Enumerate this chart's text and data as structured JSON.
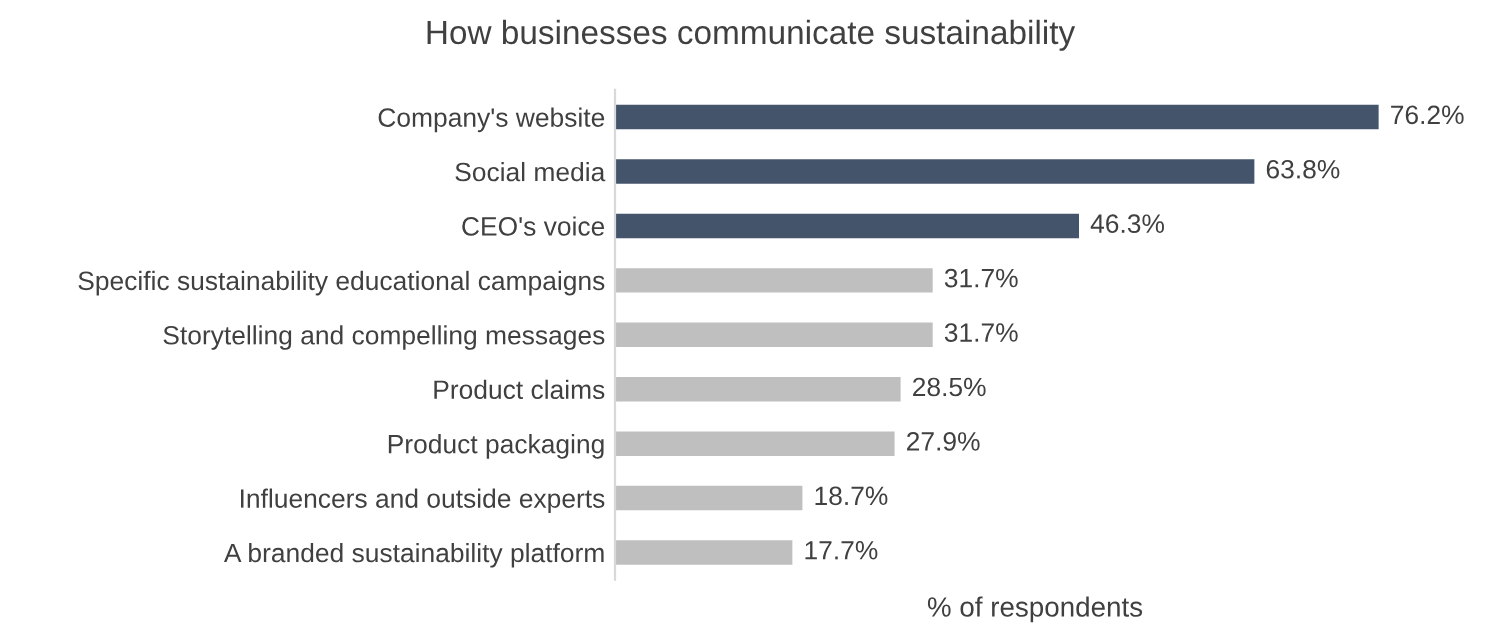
{
  "chart_data": {
    "type": "bar",
    "orientation": "horizontal",
    "title": "How businesses communicate sustainability",
    "xlabel": "% of respondents",
    "categories": [
      "Company's website",
      "Social media",
      "CEO's voice",
      "Specific sustainability educational campaigns",
      "Storytelling and compelling messages",
      "Product claims",
      "Product packaging",
      "Influencers and outside experts",
      "A branded sustainability platform"
    ],
    "values": [
      76.2,
      63.8,
      46.3,
      31.7,
      31.7,
      28.5,
      27.9,
      18.7,
      17.7
    ],
    "value_labels": [
      "76.2%",
      "63.8%",
      "46.3%",
      "31.7%",
      "31.7%",
      "28.5%",
      "27.9%",
      "18.7%",
      "17.7%"
    ],
    "colors": [
      "#44546a",
      "#44546a",
      "#44546a",
      "#bfbfbf",
      "#bfbfbf",
      "#bfbfbf",
      "#bfbfbf",
      "#bfbfbf",
      "#bfbfbf"
    ],
    "tick_labels": "y",
    "grid": false
  }
}
